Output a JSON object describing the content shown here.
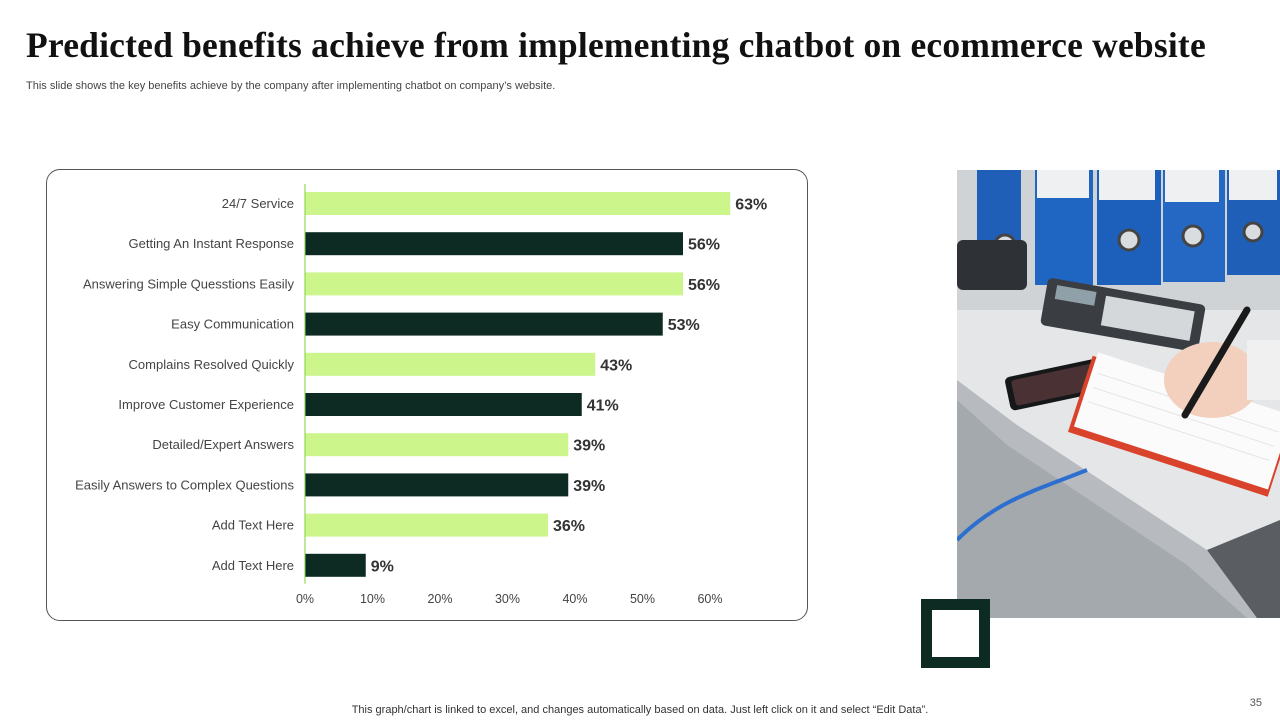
{
  "slide": {
    "title": "Predicted benefits achieve from implementing chatbot on ecommerce website",
    "subtitle": "This slide shows the key benefits achieve by the company after implementing chatbot on company’s website.",
    "footer_note": "This graph/chart is linked to excel,  and changes automatically based on data. Just left click on it and select “Edit Data”.",
    "page_number": "35"
  },
  "colors": {
    "light_bar": "#ccf58c",
    "dark_bar": "#0d2b22",
    "axis_line": "#7fcf3a",
    "deco": "#0d2b22"
  },
  "photo": {
    "icon": "office-desk-photo"
  },
  "chart_data": {
    "type": "bar",
    "orientation": "horizontal",
    "title": "",
    "xlabel": "",
    "ylabel": "",
    "xlim": [
      0,
      0.65
    ],
    "ticks": [
      "0%",
      "10%",
      "20%",
      "30%",
      "40%",
      "50%",
      "60%"
    ],
    "tick_values": [
      0,
      0.1,
      0.2,
      0.3,
      0.4,
      0.5,
      0.6
    ],
    "categories": [
      "24/7 Service",
      "Getting An Instant Response",
      "Answering Simple Quesstions Easily",
      "Easy Communication",
      "Complains Resolved Quickly",
      "Improve Customer Experience",
      "Detailed/Expert Answers",
      "Easily Answers to Complex Questions",
      "Add Text Here",
      "Add  Text Here"
    ],
    "values": [
      0.63,
      0.56,
      0.56,
      0.53,
      0.43,
      0.41,
      0.39,
      0.39,
      0.36,
      0.09
    ],
    "value_labels": [
      "63%",
      "56%",
      "56%",
      "53%",
      "43%",
      "41%",
      "39%",
      "39%",
      "36%",
      "9%"
    ],
    "bar_colors": [
      "light",
      "dark",
      "light",
      "dark",
      "light",
      "dark",
      "light",
      "dark",
      "light",
      "dark"
    ],
    "grid": false,
    "legend": "none"
  }
}
